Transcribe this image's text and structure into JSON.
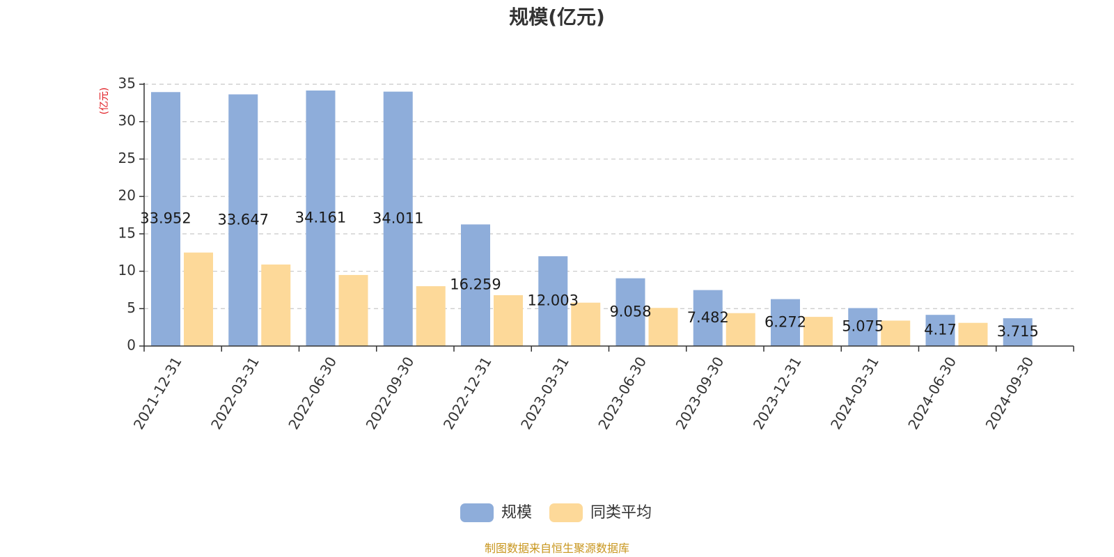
{
  "chart_data": {
    "type": "bar",
    "title": "规模(亿元)",
    "unit_label": "(亿元)",
    "categories": [
      "2021-12-31",
      "2022-03-31",
      "2022-06-30",
      "2022-09-30",
      "2022-12-31",
      "2023-03-31",
      "2023-06-30",
      "2023-09-30",
      "2023-12-31",
      "2024-03-31",
      "2024-06-30",
      "2024-09-30"
    ],
    "series": [
      {
        "name": "规模",
        "color": "#8eadda",
        "values": [
          33.952,
          33.647,
          34.161,
          34.011,
          16.259,
          12.003,
          9.058,
          7.482,
          6.272,
          5.075,
          4.17,
          3.715
        ],
        "labels": [
          "33.952",
          "33.647",
          "34.161",
          "34.011",
          "16.259",
          "12.003",
          "9.058",
          "7.482",
          "6.272",
          "5.075",
          "4.17",
          "3.715"
        ]
      },
      {
        "name": "同类平均",
        "color": "#fdd999",
        "values": [
          12.5,
          10.9,
          9.5,
          8.0,
          6.8,
          5.8,
          5.1,
          4.4,
          3.9,
          3.4,
          3.1,
          null
        ]
      }
    ],
    "ylim": [
      0,
      35
    ],
    "yticks": [
      0,
      5,
      10,
      15,
      20,
      25,
      30,
      35
    ],
    "grid": true,
    "legend_position": "bottom-center"
  },
  "source_note": "制图数据来自恒生聚源数据库"
}
